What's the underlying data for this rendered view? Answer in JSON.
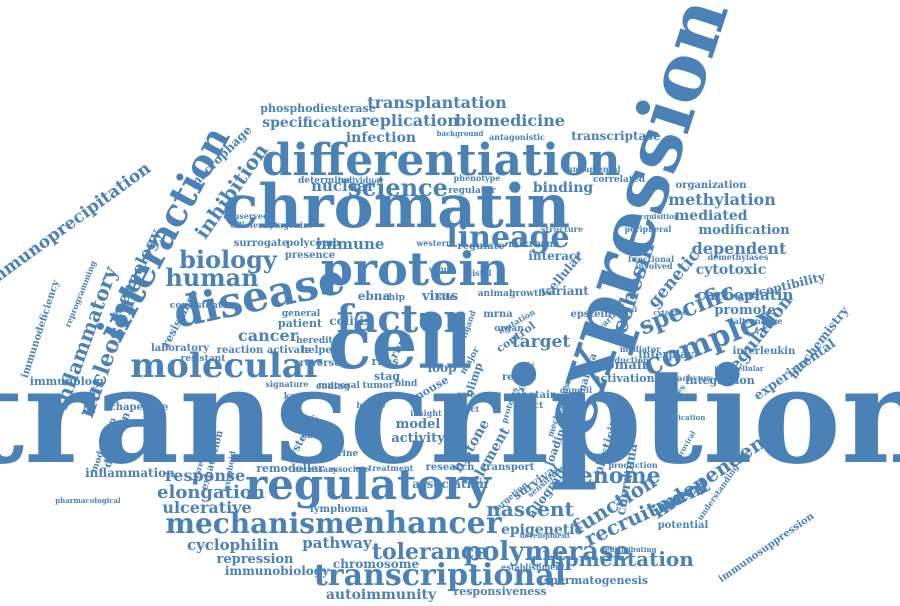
{
  "accent_color": "#4a81b7",
  "words": [
    "transcription",
    "expression",
    "cell",
    "chromatin",
    "differentiation",
    "protein",
    "factor",
    "disease",
    "regulatory",
    "molecular",
    "interaction",
    "enhancer",
    "transcriptional",
    "complex",
    "lineage",
    "mechanism",
    "biology",
    "human",
    "science",
    "specific",
    "cohesin",
    "polymerase",
    "tolerance",
    "recruitment",
    "function",
    "genome",
    "nucleosome",
    "inflammatory",
    "immunoprecipitation",
    "inhibition",
    "technology",
    "elongation",
    "response",
    "nascent",
    "chipmentation",
    "independent",
    "regulation",
    "methylation",
    "cancer",
    "immune",
    "nuclear",
    "mediated",
    "target",
    "cytotoxic",
    "genetic",
    "dependent",
    "carboplatin",
    "transplantation",
    "replication",
    "biomedicine",
    "specification",
    "phosphodiesterase",
    "infection",
    "transcriptase",
    "binding",
    "organization",
    "modification",
    "promote",
    "susceptibility",
    "biochemistry",
    "experimental",
    "interleukin",
    "integration",
    "activation",
    "domain",
    "interplay",
    "chordoma",
    "epigenetic",
    "ulcerative",
    "cyclophilin",
    "pathway",
    "repression",
    "chromosome",
    "immunobiology",
    "autoimmunity",
    "responsiveness",
    "spermatogenesis",
    "inflammation",
    "depletion",
    "modulation",
    "immunology",
    "chaperone",
    "laboratory",
    "resistance",
    "immunodeficiency",
    "macrophage",
    "ebna",
    "colitis",
    "virus",
    "patient",
    "reaction",
    "activate",
    "helper",
    "model",
    "activity",
    "histone",
    "element",
    "loop",
    "mrna",
    "epstein",
    "surrogate",
    "polycomb",
    "presence",
    "regulate",
    "microrna",
    "interact",
    "cellular",
    "variant",
    "remodeller",
    "lymphoma",
    "potential",
    "immunosuppression",
    "demethylases",
    "mediator",
    "signature",
    "mucosal",
    "coding",
    "tumor",
    "stag",
    "rnas",
    "reveal",
    "hotair",
    "control",
    "loading",
    "plasticity",
    "result",
    "malaria",
    "survival",
    "allograft",
    "research",
    "transport",
    "association",
    "efficiency",
    "western",
    "alternative",
    "reduction",
    "peripheral",
    "structure",
    "fundamental",
    "correlated",
    "determine",
    "individual",
    "antagonistic",
    "background",
    "regulator",
    "phenotype",
    "animal",
    "growth",
    "chip",
    "virus",
    "exhaustion",
    "reprogramming",
    "lymphoid",
    "dysregulates",
    "systemic",
    "murine",
    "necessary",
    "associate",
    "treatment",
    "development",
    "establishment",
    "redistributing",
    "general",
    "reverse",
    "bind",
    "production",
    "understanding",
    "targeting",
    "sensitivity",
    "cytokine",
    "brachyury",
    "processes",
    "implication",
    "functional",
    "ovarian",
    "dnmt3l",
    "critical",
    "acquisition",
    "involved",
    "intracellular",
    "proviral",
    "distal",
    "resistant",
    "blimp",
    "runx",
    "kappa",
    "absence",
    "mouse",
    "role",
    "site",
    "ligand",
    "organ",
    "major",
    "effect",
    "heredity",
    "conserved",
    "antagonize",
    "mutation",
    "pharmacological",
    "consistent",
    "proteins",
    "mechanisms",
    "direct",
    "insight",
    "bridge"
  ]
}
